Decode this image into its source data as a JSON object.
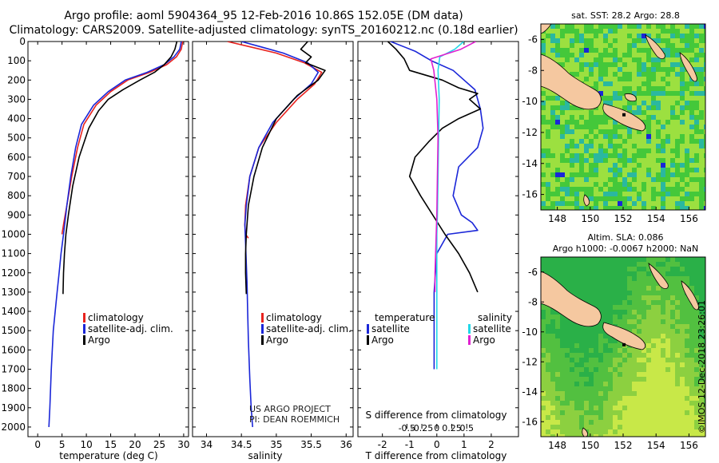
{
  "header": {
    "title_line1": "Argo profile: aoml 5904364_95 12-Feb-2016 10.86S 152.05E (DM data)",
    "title_line2": "Climatology: CARS2009. Satellite-adjusted climatology: synTS_20160212.nc (0.18d earlier)"
  },
  "credit": {
    "line1": "US ARGO PROJECT",
    "line2": "PI: DEAN ROEMMICH"
  },
  "side_label": "©IMOS 12-Dec-2018 23:26:01",
  "colors": {
    "climatology": "#e8221e",
    "satellite": "#1a26d8",
    "argo": "#000000",
    "argo_salinity": "#e020d0",
    "sat_salinity": "#22d8e8",
    "land": "#f5c8a0"
  },
  "chart_data": [
    {
      "type": "line",
      "name": "temperature-panel",
      "xlabel": "temperature (deg C)",
      "ylabel": "",
      "xlim": [
        -2,
        31
      ],
      "ylim": [
        0,
        2050
      ],
      "xticks": [
        "0",
        "5",
        "10",
        "15",
        "20",
        "25",
        "30"
      ],
      "xtick_values": [
        0,
        5,
        10,
        15,
        20,
        25,
        30
      ],
      "yticks": [
        "0",
        "100",
        "200",
        "300",
        "400",
        "500",
        "600",
        "700",
        "800",
        "900",
        "1000",
        "1100",
        "1200",
        "1300",
        "1400",
        "1500",
        "1600",
        "1700",
        "1800",
        "1900",
        "2000"
      ],
      "ytick_values": [
        0,
        100,
        200,
        300,
        400,
        500,
        600,
        700,
        800,
        900,
        1000,
        1100,
        1200,
        1300,
        1400,
        1500,
        1600,
        1700,
        1800,
        1900,
        2000
      ],
      "legend": [
        "climatology",
        "satellite-adj. clim.",
        "Argo"
      ],
      "series": [
        {
          "name": "climatology",
          "x": [
            29.8,
            29.5,
            28.5,
            26.5,
            23,
            18.5,
            15,
            12,
            9.5,
            8.2,
            7,
            6,
            5.3,
            5
          ],
          "y": [
            0,
            40,
            80,
            120,
            160,
            200,
            260,
            330,
            430,
            550,
            700,
            850,
            950,
            1000
          ]
        },
        {
          "name": "satellite-adj. clim.",
          "x": [
            29.5,
            29.2,
            28,
            26,
            22.5,
            18,
            14.5,
            11.5,
            9,
            7.8,
            6.8,
            6,
            5.3,
            4.8,
            4.4,
            4,
            3.6,
            3.2,
            2.8,
            2.5,
            2.3
          ],
          "y": [
            0,
            40,
            80,
            120,
            160,
            200,
            260,
            330,
            430,
            550,
            700,
            850,
            1000,
            1100,
            1200,
            1300,
            1400,
            1500,
            1700,
            1900,
            2000
          ]
        },
        {
          "name": "Argo",
          "x": [
            28.6,
            28.2,
            27.4,
            26,
            24,
            21,
            17.5,
            14.5,
            12.5,
            10.5,
            8.5,
            7.2,
            6.3,
            5.8,
            5.5,
            5.3,
            5.2
          ],
          "y": [
            0,
            40,
            80,
            120,
            160,
            200,
            250,
            300,
            360,
            450,
            600,
            750,
            900,
            1000,
            1100,
            1200,
            1310
          ]
        }
      ]
    },
    {
      "type": "line",
      "name": "salinity-panel",
      "xlabel": "salinity",
      "xlim": [
        33.8,
        36.1
      ],
      "ylim": [
        0,
        2050
      ],
      "xticks": [
        "34",
        "34.5",
        "35",
        "35.5",
        "36"
      ],
      "xtick_values": [
        34,
        34.5,
        35,
        35.5,
        36
      ],
      "legend": [
        "climatology",
        "satellite-adj. clim.",
        "Argo"
      ],
      "series": [
        {
          "name": "climatology",
          "x": [
            34.3,
            34.65,
            35.0,
            35.4,
            35.65,
            35.55,
            35.3,
            35.0,
            34.75,
            34.62,
            34.56,
            34.55,
            34.56,
            34.6
          ],
          "y": [
            0,
            30,
            60,
            110,
            160,
            220,
            300,
            420,
            550,
            700,
            850,
            950,
            1000,
            1020
          ]
        },
        {
          "name": "satellite-adj. clim.",
          "x": [
            34.5,
            34.8,
            35.1,
            35.45,
            35.6,
            35.5,
            35.25,
            34.95,
            34.75,
            34.62,
            34.57,
            34.55,
            34.56,
            34.57,
            34.58,
            34.59,
            34.6,
            34.62,
            34.64,
            34.66
          ],
          "y": [
            0,
            30,
            60,
            110,
            160,
            220,
            300,
            420,
            550,
            700,
            850,
            950,
            1050,
            1150,
            1250,
            1400,
            1550,
            1750,
            1900,
            2000
          ]
        },
        {
          "name": "Argo",
          "x": [
            35.45,
            35.35,
            35.5,
            35.42,
            35.7,
            35.6,
            35.3,
            35.0,
            34.8,
            34.68,
            34.6,
            34.57,
            34.56,
            34.56,
            34.57
          ],
          "y": [
            0,
            40,
            80,
            110,
            150,
            200,
            280,
            400,
            550,
            700,
            850,
            1000,
            1100,
            1200,
            1310
          ]
        }
      ]
    },
    {
      "type": "line",
      "name": "difference-panel",
      "xlabel": "T difference from climatology",
      "x2label": "S difference from climatology",
      "xlim": [
        -2.9,
        3.0
      ],
      "ylim": [
        0,
        2050
      ],
      "xticks": [
        "-2",
        "-1",
        "0",
        "1",
        "2"
      ],
      "xtick_values": [
        -2,
        -1,
        0,
        1,
        2
      ],
      "x2ticks": [
        "-0.5",
        "-0.25",
        "0",
        "0.25",
        "0.5"
      ],
      "x2tick_values": [
        -0.5,
        -0.25,
        0,
        0.25,
        0.5
      ],
      "legend_left_title": "temperature",
      "legend_right_title": "salinity",
      "legend": [
        "satellite",
        "Argo",
        "satellite",
        "Argo"
      ],
      "series": [
        {
          "name": "temperature satellite",
          "x": [
            -1.7,
            -0.8,
            -0.2,
            0.6,
            1.0,
            1.4,
            1.6,
            1.7,
            1.5,
            0.8,
            0.6,
            0.9,
            1.3,
            1.5,
            0.4,
            0.0,
            -0.1,
            -0.1,
            -0.1
          ],
          "y": [
            0,
            50,
            100,
            150,
            200,
            250,
            350,
            450,
            550,
            650,
            800,
            900,
            940,
            980,
            1000,
            1100,
            1300,
            1600,
            1700
          ]
        },
        {
          "name": "temperature Argo",
          "x": [
            -1.8,
            -1.5,
            -1.2,
            -1.0,
            0.2,
            0.8,
            1.5,
            1.2,
            1.6,
            0.8,
            0.2,
            -0.3,
            -0.8,
            -1.0,
            -0.6,
            0.3,
            0.8,
            1.2,
            1.5
          ],
          "y": [
            0,
            40,
            90,
            150,
            200,
            240,
            270,
            300,
            350,
            400,
            450,
            520,
            600,
            700,
            800,
            1000,
            1100,
            1200,
            1300
          ]
        },
        {
          "name": "salinity satellite",
          "x": [
            0.45,
            0.3,
            0.05,
            0.02,
            0.04,
            0.03,
            0.02,
            0.01,
            0.0,
            0.0,
            0.0,
            0.0
          ],
          "y": [
            0,
            40,
            80,
            150,
            300,
            500,
            700,
            900,
            1000,
            1300,
            1600,
            1700
          ]
        },
        {
          "name": "salinity Argo",
          "x": [
            0.65,
            0.4,
            -0.1,
            -0.05,
            0.0,
            0.02,
            0.01,
            0.0,
            -0.01,
            -0.02,
            -0.03,
            -0.03
          ],
          "y": [
            0,
            40,
            90,
            150,
            300,
            500,
            700,
            900,
            1000,
            1100,
            1200,
            1300
          ]
        }
      ]
    },
    {
      "type": "heatmap",
      "name": "sst-map",
      "title": "sat. SST: 28.2 Argo: 28.8",
      "xticks": [
        "148",
        "150",
        "152",
        "154",
        "156"
      ],
      "xtick_values": [
        148,
        150,
        152,
        154,
        156
      ],
      "yticks": [
        "-6",
        "-8",
        "-10",
        "-12",
        "-14",
        "-16"
      ],
      "ytick_values": [
        -6,
        -8,
        -10,
        -12,
        -14,
        -16
      ],
      "xlim": [
        147,
        157
      ],
      "ylim": [
        -17,
        -5
      ],
      "argo_position": [
        152.05,
        -10.86
      ]
    },
    {
      "type": "heatmap",
      "name": "sla-map",
      "title": "Altim. SLA: 0.086",
      "subtitle": "Argo h1000: -0.0067 h2000: NaN",
      "xticks": [
        "148",
        "150",
        "152",
        "154",
        "156"
      ],
      "xtick_values": [
        148,
        150,
        152,
        154,
        156
      ],
      "yticks": [
        "-6",
        "-8",
        "-10",
        "-12",
        "-14",
        "-16"
      ],
      "ytick_values": [
        -6,
        -8,
        -10,
        -12,
        -14,
        -16
      ],
      "xlim": [
        147,
        157
      ],
      "ylim": [
        -17,
        -5
      ],
      "argo_position": [
        152.05,
        -10.86
      ]
    }
  ]
}
